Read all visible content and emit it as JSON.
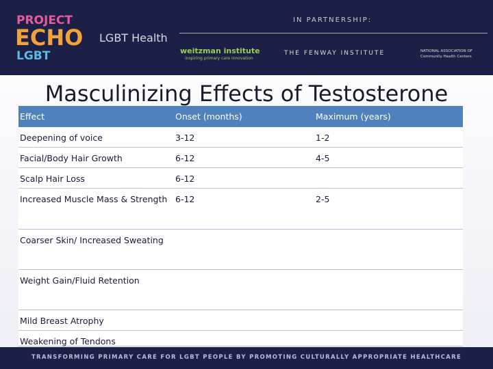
{
  "header": {
    "logo_project": "PROJECT",
    "logo_echo": "ECHO",
    "logo_lgbt": "LGBT",
    "logo_health": "LGBT Health",
    "partnership": "IN PARTNERSHIP:",
    "weitzman": "weitzman institute",
    "weitzman_tagline": "inspiring primary care innovation",
    "fenway": "THE FENWAY INSTITUTE",
    "nachc_1": "NATIONAL ASSOCIATION OF",
    "nachc_2": "Community Health Centers"
  },
  "title": "Masculinizing Effects of Testosterone",
  "table": {
    "columns": [
      "Effect",
      "Onset (months)",
      "Maximum (years)"
    ],
    "rows": [
      {
        "effect": "Deepening of voice",
        "onset": "3-12",
        "maximum": "1-2"
      },
      {
        "effect": "Facial/Body Hair Growth",
        "onset": "6-12",
        "maximum": "4-5"
      },
      {
        "effect": "Scalp Hair Loss",
        "onset": "6-12"
      },
      {
        "effect": "Increased Muscle Mass & Strength",
        "onset": "6-12",
        "maximum": "2-5"
      },
      {
        "effect": "Coarser Skin/ Increased Sweating"
      },
      {
        "effect": "Weight Gain/Fluid Retention"
      },
      {
        "effect": "Mild Breast Atrophy"
      },
      {
        "effect": "Weakening of Tendons"
      }
    ]
  },
  "footer": "TRANSFORMING PRIMARY CARE FOR LGBT PEOPLE BY PROMOTING CULTURALLY APPROPRIATE HEALTHCARE"
}
